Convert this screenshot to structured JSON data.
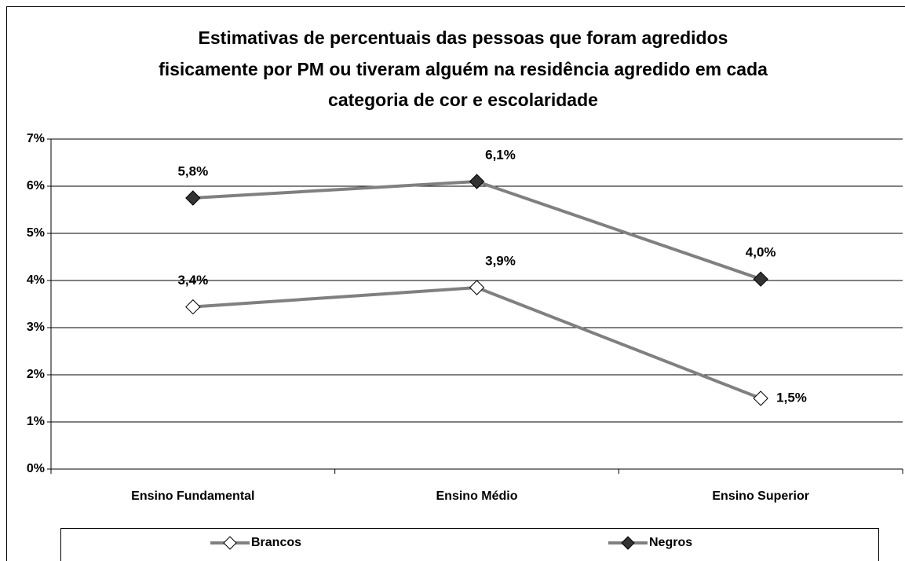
{
  "chart_data": {
    "type": "line",
    "title": [
      "Estimativas de percentuais das pessoas que foram agredidos",
      "fisicamente por PM ou tiveram alguém na residência agredido em cada",
      "categoria de cor e escolaridade"
    ],
    "categories": [
      "Ensino Fundamental",
      "Ensino Médio",
      "Ensino Superior"
    ],
    "series": [
      {
        "name": "Brancos",
        "color": "#808080",
        "marker_color": "#ffffff",
        "values": [
          3.44,
          3.85,
          1.5
        ],
        "value_labels": [
          "3,4%",
          "3,9%",
          "1,5%"
        ]
      },
      {
        "name": "Negros",
        "color": "#808080",
        "marker_color": "#333333",
        "values": [
          5.75,
          6.1,
          4.03
        ],
        "value_labels": [
          "5,8%",
          "6,1%",
          "4,0%"
        ]
      }
    ],
    "ylim": [
      0,
      7
    ],
    "yticks": [
      {
        "value": 0,
        "label": "0%"
      },
      {
        "value": 1,
        "label": "1%"
      },
      {
        "value": 2,
        "label": "2%"
      },
      {
        "value": 3,
        "label": "3%"
      },
      {
        "value": 4,
        "label": "4%"
      },
      {
        "value": 5,
        "label": "5%"
      },
      {
        "value": 6,
        "label": "6%"
      },
      {
        "value": 7,
        "label": "7%"
      }
    ],
    "grid": true,
    "legend": "bottom"
  }
}
